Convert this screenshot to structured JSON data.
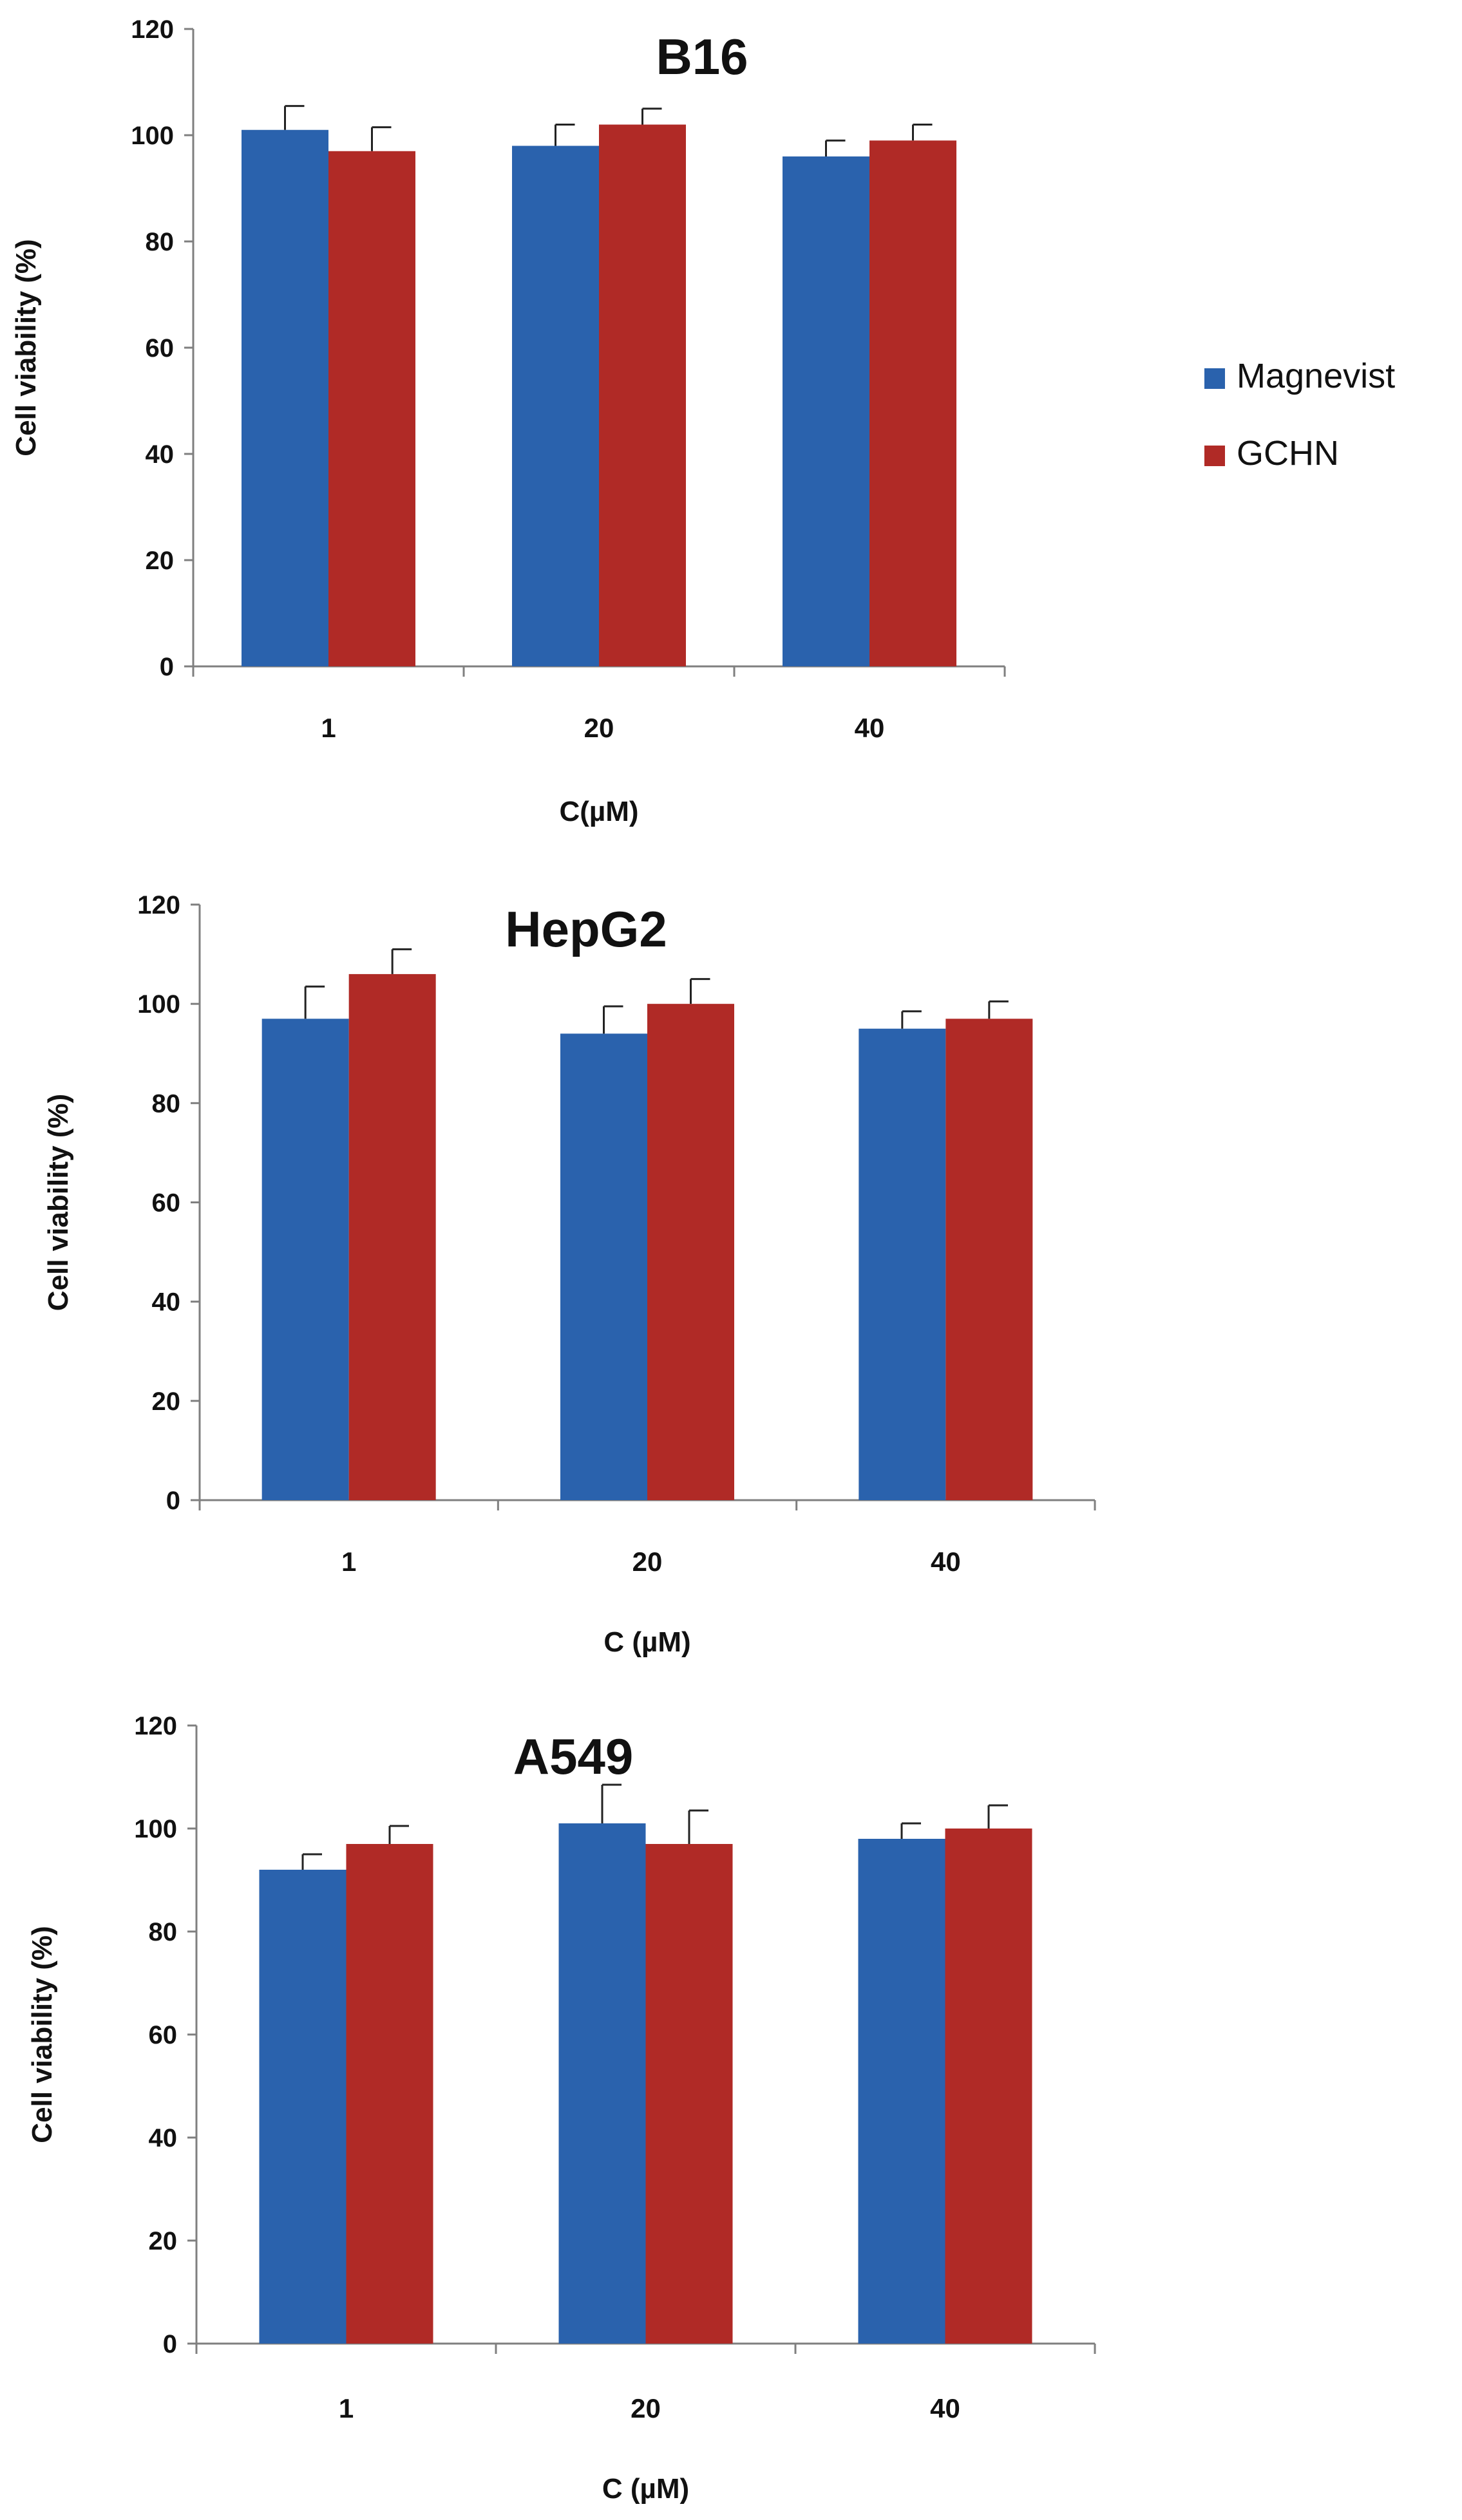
{
  "legend": {
    "items": [
      {
        "label": "Magnevist",
        "color": "#2a62ad"
      },
      {
        "label": "GCHN",
        "color": "#b02a26"
      }
    ]
  },
  "chart_data": [
    {
      "type": "bar",
      "title": "B16",
      "categories": [
        "1",
        "20",
        "40"
      ],
      "xlabel": "C(µM)",
      "ylabel": "Cell viability (%)",
      "ylim": [
        0,
        120
      ],
      "yticks": [
        0,
        20,
        40,
        60,
        80,
        100,
        120
      ],
      "series": [
        {
          "name": "Magnevist",
          "values": [
            101,
            98,
            96
          ],
          "errors": [
            4.5,
            4.0,
            3.0
          ]
        },
        {
          "name": "GCHN",
          "values": [
            97,
            102,
            99
          ],
          "errors": [
            4.5,
            3.0,
            3.0
          ]
        }
      ]
    },
    {
      "type": "bar",
      "title": "HepG2",
      "categories": [
        "1",
        "20",
        "40"
      ],
      "xlabel": "C (µM)",
      "ylabel": "Cell viability (%)",
      "ylim": [
        0,
        120
      ],
      "yticks": [
        0,
        20,
        40,
        60,
        80,
        100,
        120
      ],
      "series": [
        {
          "name": "Magnevist",
          "values": [
            97,
            94,
            95
          ],
          "errors": [
            6.5,
            5.5,
            3.5
          ]
        },
        {
          "name": "GCHN",
          "values": [
            106,
            100,
            97
          ],
          "errors": [
            5.0,
            5.0,
            3.5
          ]
        }
      ]
    },
    {
      "type": "bar",
      "title": "A549",
      "categories": [
        "1",
        "20",
        "40"
      ],
      "xlabel": "C (µM)",
      "ylabel": "Cell viability (%)",
      "ylim": [
        0,
        120
      ],
      "yticks": [
        0,
        20,
        40,
        60,
        80,
        100,
        120
      ],
      "series": [
        {
          "name": "Magnevist",
          "values": [
            92,
            101,
            98
          ],
          "errors": [
            3.0,
            7.5,
            3.0
          ]
        },
        {
          "name": "GCHN",
          "values": [
            97,
            97,
            100
          ],
          "errors": [
            3.5,
            6.5,
            4.5
          ]
        }
      ]
    }
  ]
}
